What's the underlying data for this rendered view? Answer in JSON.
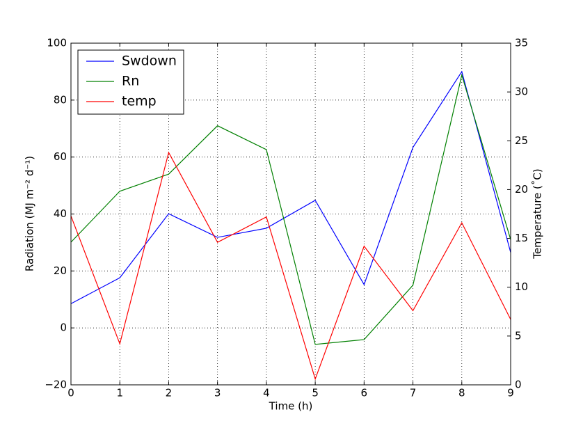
{
  "chart_data": {
    "type": "line",
    "xlabel": "Time (h)",
    "ylabel": "Radiation (MJ m⁻² d⁻¹)",
    "y2label": "Temperature (˚C)",
    "x": [
      0,
      1,
      2,
      3,
      4,
      5,
      6,
      7,
      8,
      9
    ],
    "series": [
      {
        "name": "Swdown",
        "color": "#0000ff",
        "values": [
          8.5,
          17.6,
          40.1,
          31.8,
          35,
          44.8,
          15.2,
          63.4,
          90,
          26.5
        ]
      },
      {
        "name": "Rn",
        "color": "#008000",
        "values": [
          30.1,
          48,
          54,
          71,
          62.6,
          -5.8,
          -4.1,
          15,
          88.8,
          31
        ]
      },
      {
        "name": "temp",
        "color": "#ff0000",
        "axis": "y2",
        "values": [
          17.3,
          4.2,
          23.8,
          14.6,
          17.2,
          0.6,
          14.2,
          7.6,
          16.6,
          6.7
        ]
      }
    ],
    "xlim": [
      0,
      9
    ],
    "xticks": [
      0,
      1,
      2,
      3,
      4,
      5,
      6,
      7,
      8,
      9
    ],
    "ylim": [
      -20,
      100
    ],
    "yticks": [
      {
        "value": -20,
        "label": "−20"
      },
      0,
      20,
      40,
      60,
      80,
      100
    ],
    "y2lim": [
      0,
      35
    ],
    "y2ticks": [
      0,
      5,
      10,
      15,
      20,
      25,
      30,
      35
    ],
    "grid": true,
    "legend": "upper left"
  }
}
